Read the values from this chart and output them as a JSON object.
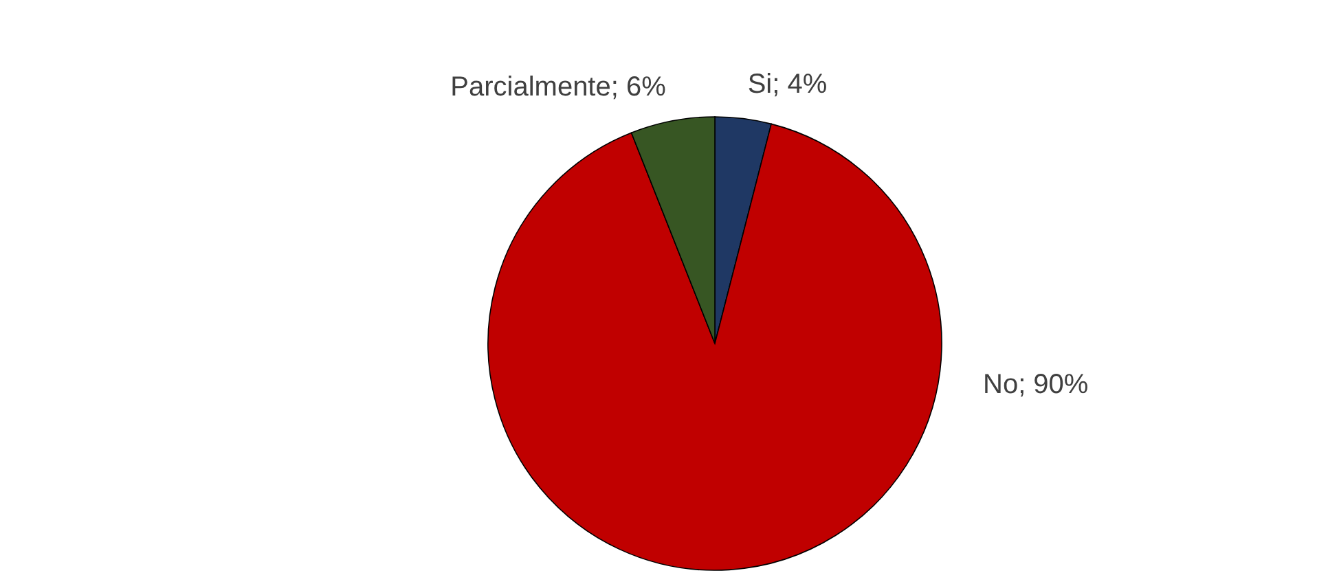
{
  "chart_data": {
    "type": "pie",
    "categories": [
      "Si",
      "No",
      "Parcialmente"
    ],
    "values": [
      4,
      90,
      6
    ],
    "colors": [
      "#1f3864",
      "#c00000",
      "#375623"
    ],
    "value_labels": [
      "4%",
      "90%",
      "6%"
    ]
  }
}
